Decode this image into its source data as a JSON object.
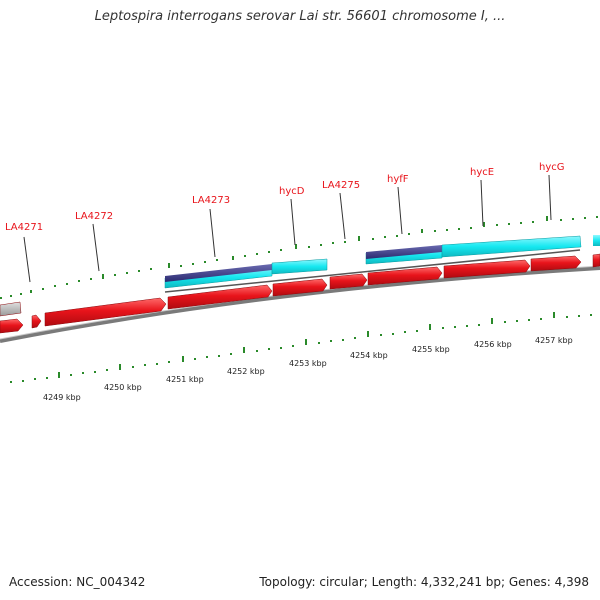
{
  "title": "Leptospira interrogans serovar Lai str. 56601 chromosome I, ...",
  "footer": {
    "accession": "Accession: NC_004342",
    "topology": "Topology: circular; Length: 4,332,241 bp; Genes: 4,398"
  },
  "scale_labels": [
    "4249 kbp",
    "4250 kbp",
    "4251 kbp",
    "4252 kbp",
    "4253 kbp",
    "4254 kbp",
    "4255 kbp",
    "4256 kbp",
    "4257 kbp"
  ],
  "gene_labels": [
    "LA4271",
    "LA4272",
    "LA4273",
    "hycD",
    "LA4275",
    "hyfF",
    "hycE",
    "hycG"
  ],
  "colors": {
    "gene_arrow": "#e8141b",
    "cds_cyan": "#16e8f0",
    "cds_dark": "#3a3a8a",
    "tick": "#2a8a2a",
    "backbone": "#7a7a7a",
    "label": "#e8141b"
  }
}
